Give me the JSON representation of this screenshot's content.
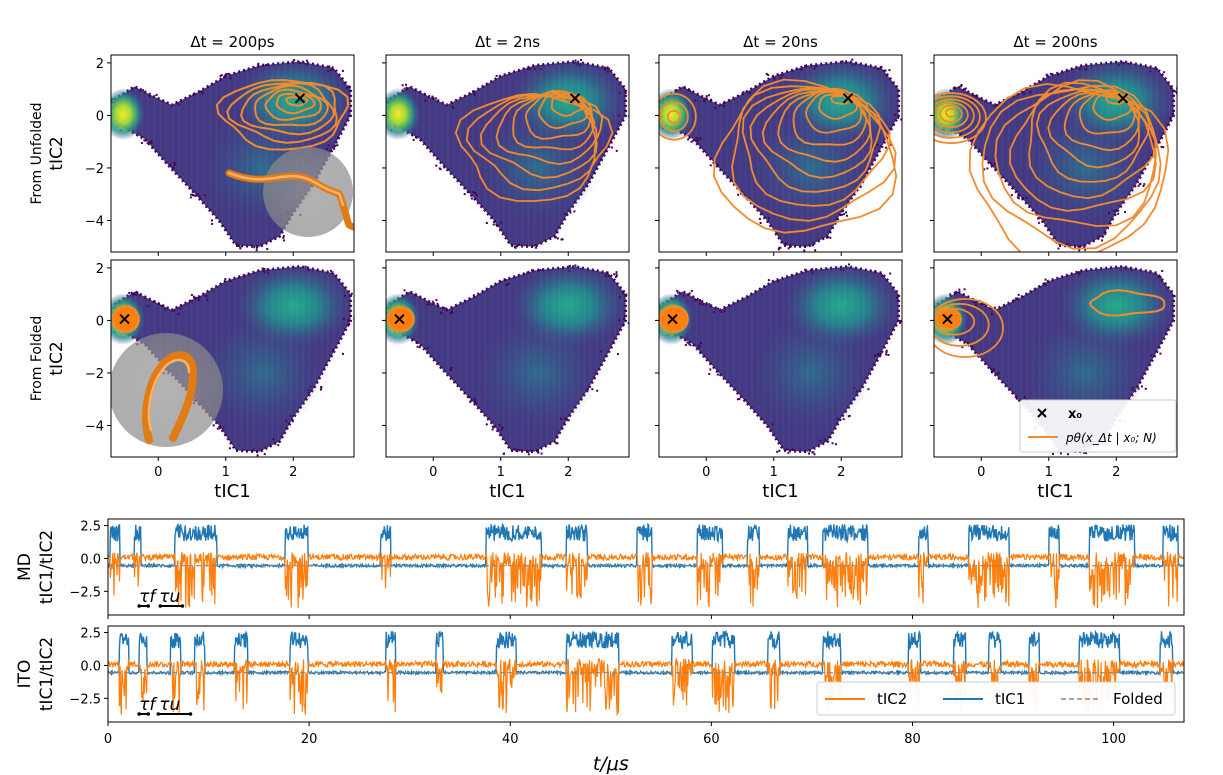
{
  "figure": {
    "grid": {
      "column_titles": [
        "Δt = 200ps",
        "Δt = 2ns",
        "Δt = 20ns",
        "Δt = 200ns"
      ],
      "row_labels": [
        "From Unfolded",
        "From Folded"
      ],
      "ylabel": "tIC2",
      "xlabel": "tIC1",
      "x_ticks": [
        "0",
        "1",
        "2"
      ],
      "y_ticks": [
        "2",
        "0",
        "−2",
        "−4"
      ],
      "legend": {
        "start_marker_label": "x₀",
        "contour_label": "pθ(x_Δt | x₀; N)"
      }
    },
    "traces": {
      "xlabel": "t/μs",
      "x_ticks": [
        "0",
        "20",
        "40",
        "60",
        "80",
        "100"
      ],
      "y_ticks": [
        "2.5",
        "0.0",
        "−2.5"
      ],
      "panels": [
        {
          "name": "MD",
          "ylabel_line1": "MD",
          "ylabel_line2": "tIC1/tIC2",
          "tau_f": "τf",
          "tau_u": "τu"
        },
        {
          "name": "ITO",
          "ylabel_line1": "ITO",
          "ylabel_line2": "tIC1/tIC2",
          "tau_f": "τf",
          "tau_u": "τu"
        }
      ],
      "legend": [
        "tIC2",
        "tIC1",
        "Folded"
      ]
    },
    "colors": {
      "tIC1": "#1f77b4",
      "tIC2": "#ff7f0e",
      "contour": "#f28a2e",
      "density_low": "#440154",
      "density_mid": "#21918c",
      "density_high": "#fde725"
    }
  },
  "chart_data": [
    {
      "type": "heatmap",
      "title": "Δt = 200ps / 2ns / 20ns / 200ns",
      "rows": [
        "From Unfolded",
        "From Folded"
      ],
      "columns": [
        "Δt = 200ps",
        "Δt = 2ns",
        "Δt = 20ns",
        "Δt = 200ns"
      ],
      "xlabel": "tIC1",
      "ylabel": "tIC2",
      "xlim": [
        -0.7,
        2.9
      ],
      "ylim": [
        -5.2,
        2.3
      ],
      "density_modes": [
        {
          "x": -0.5,
          "y": 0.1,
          "label": "folded basin (highest density)"
        },
        {
          "x": 2.0,
          "y": 0.7,
          "label": "unfolded basin"
        },
        {
          "x": 1.6,
          "y": -2.2,
          "label": "intermediate region"
        }
      ],
      "start_points": {
        "From Unfolded": [
          2.1,
          0.65
        ],
        "From Folded": [
          -0.5,
          0.05
        ]
      },
      "contours": {
        "From Unfolded": [
          {
            "dt": "200ps",
            "centers": [
              [
                2.0,
                0.4
              ]
            ],
            "extent_x": [
              1.1,
              2.9
            ],
            "extent_y": [
              -1.4,
              1.9
            ]
          },
          {
            "dt": "2ns",
            "centers": [
              [
                1.9,
                0.3
              ]
            ],
            "extent_x": [
              0.8,
              2.9
            ],
            "extent_y": [
              -3.0,
              1.9
            ]
          },
          {
            "dt": "20ns",
            "centers": [
              [
                1.8,
                -0.8
              ],
              [
                -0.5,
                0.0
              ]
            ],
            "extent_x": [
              -0.7,
              2.9
            ],
            "extent_y": [
              -4.2,
              2.0
            ]
          },
          {
            "dt": "200ns",
            "centers": [
              [
                1.8,
                -0.8
              ],
              [
                -0.5,
                0.1
              ]
            ],
            "extent_x": [
              -0.7,
              2.9
            ],
            "extent_y": [
              -4.6,
              2.0
            ]
          }
        ],
        "From Folded": [
          {
            "dt": "200ps",
            "centers": [
              [
                -0.5,
                0.05
              ]
            ]
          },
          {
            "dt": "2ns",
            "centers": [
              [
                -0.5,
                0.05
              ]
            ]
          },
          {
            "dt": "20ns",
            "centers": [
              [
                -0.5,
                0.05
              ]
            ]
          },
          {
            "dt": "200ns",
            "centers": [
              [
                -0.5,
                0.1
              ],
              [
                2.0,
                0.7
              ]
            ]
          }
        ]
      }
    },
    {
      "type": "line",
      "panels": [
        "MD",
        "ITO"
      ],
      "xlabel": "t/μs",
      "ylabel": "tIC1/tIC2",
      "xlim": [
        0,
        107
      ],
      "ylim": [
        -4.3,
        3.0
      ],
      "series": [
        {
          "name": "tIC2",
          "baseline": 0.1,
          "unfolded_range": [
            -3.8,
            0.3
          ]
        },
        {
          "name": "tIC1",
          "baseline": -0.55,
          "unfolded_range": [
            1.5,
            2.6
          ]
        },
        {
          "name": "Folded",
          "value": -0.55,
          "style": "dashed"
        }
      ],
      "unfolded_events_us": {
        "MD": [
          [
            0.2,
            1.2
          ],
          [
            2.6,
            3.3
          ],
          [
            6.6,
            10.8
          ],
          [
            17.6,
            19.9
          ],
          [
            27.1,
            28.1
          ],
          [
            37.6,
            43.1
          ],
          [
            45.6,
            47.7
          ],
          [
            52.6,
            54.1
          ],
          [
            58.6,
            61.1
          ],
          [
            63.6,
            64.8
          ],
          [
            67.6,
            69.6
          ],
          [
            71.1,
            75.6
          ],
          [
            80.6,
            81.6
          ],
          [
            85.6,
            89.6
          ],
          [
            93.6,
            94.6
          ],
          [
            97.6,
            102.1
          ],
          [
            104.9,
            106.4
          ]
        ],
        "ITO": [
          [
            1.1,
            2.1
          ],
          [
            3.1,
            3.9
          ],
          [
            6.2,
            7.2
          ],
          [
            8.6,
            9.6
          ],
          [
            12.6,
            13.9
          ],
          [
            18.1,
            19.9
          ],
          [
            27.6,
            28.6
          ],
          [
            32.6,
            33.3
          ],
          [
            38.6,
            40.6
          ],
          [
            45.6,
            50.8
          ],
          [
            56.1,
            58.1
          ],
          [
            60.1,
            62.3
          ],
          [
            65.6,
            66.8
          ],
          [
            71.1,
            72.9
          ],
          [
            79.6,
            80.8
          ],
          [
            84.1,
            85.3
          ],
          [
            87.6,
            88.8
          ],
          [
            91.6,
            92.6
          ],
          [
            96.6,
            100.6
          ],
          [
            104.6,
            105.9
          ]
        ]
      },
      "annotations": {
        "MD": {
          "tau_f_us": [
            3.1,
            4.0
          ],
          "tau_u_us": [
            5.2,
            7.4
          ]
        },
        "ITO": {
          "tau_f_us": [
            3.1,
            4.0
          ],
          "tau_u_us": [
            5.0,
            8.2
          ]
        }
      }
    }
  ]
}
